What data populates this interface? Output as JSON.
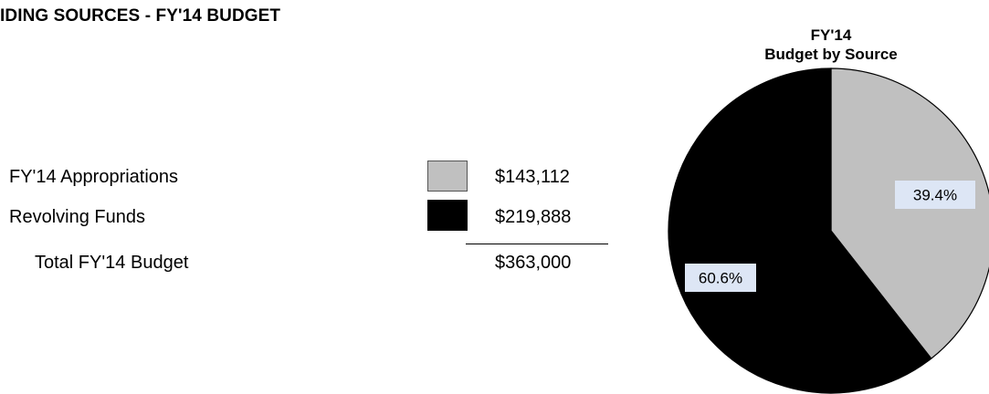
{
  "page": {
    "title": "IDING SOURCES - FY'14 BUDGET"
  },
  "legend": {
    "items": [
      {
        "label": "FY'14 Appropriations",
        "amount": "$143,112",
        "color": "#c0c0c0"
      },
      {
        "label": "Revolving Funds",
        "amount": "$219,888",
        "color": "#000000"
      }
    ],
    "total_label": "Total FY'14 Budget",
    "total_amount": "$363,000"
  },
  "chart_data": {
    "type": "pie",
    "title": "FY'14",
    "subtitle": "Budget by Source",
    "slices": [
      {
        "name": "FY'14 Appropriations",
        "value": 143112,
        "percent_label": "39.4%",
        "color": "#c0c0c0"
      },
      {
        "name": "Revolving Funds",
        "value": 219888,
        "percent_label": "60.6%",
        "color": "#000000"
      }
    ],
    "start_angle": "12 o'clock",
    "direction": "clockwise",
    "legend_placement": "left"
  }
}
